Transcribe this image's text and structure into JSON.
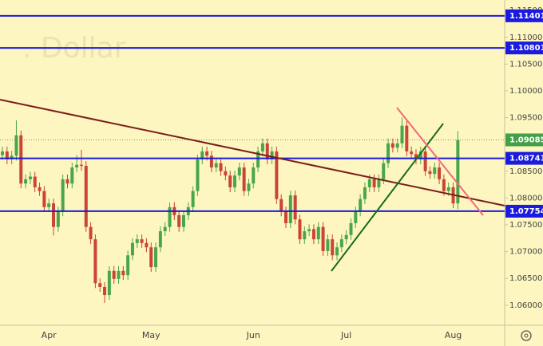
{
  "chart_data": {
    "type": "candlestick",
    "watermark": ". Dollar",
    "categories": [
      null,
      null,
      null,
      null,
      null,
      null,
      null,
      null,
      null,
      null,
      "Apr",
      null,
      null,
      null,
      null,
      null,
      null,
      null,
      null,
      null,
      null,
      null,
      null,
      null,
      null,
      null,
      null,
      null,
      null,
      null,
      null,
      null,
      "May",
      null,
      null,
      null,
      null,
      null,
      null,
      null,
      null,
      null,
      null,
      null,
      null,
      null,
      null,
      null,
      null,
      null,
      null,
      null,
      null,
      null,
      "Jun",
      null,
      null,
      null,
      null,
      null,
      null,
      null,
      null,
      null,
      null,
      null,
      null,
      null,
      null,
      null,
      null,
      null,
      null,
      null,
      "Jul",
      null,
      null,
      null,
      null,
      null,
      null,
      null,
      null,
      null,
      null,
      null,
      null,
      null,
      null,
      null,
      null,
      null,
      null,
      null,
      null,
      null,
      null,
      "Aug",
      null
    ],
    "open": [
      1.088,
      1.0887,
      1.0872,
      1.0879,
      1.0917,
      1.0827,
      1.0835,
      1.084,
      1.082,
      1.0813,
      1.0783,
      1.079,
      1.0746,
      1.0775,
      1.0835,
      1.0827,
      1.0857,
      1.0862,
      1.086,
      1.0746,
      1.0723,
      1.0641,
      1.0634,
      1.0619,
      1.0664,
      1.0649,
      1.0664,
      1.0656,
      1.0693,
      1.0716,
      1.0723,
      1.0716,
      1.0708,
      1.0671,
      1.0708,
      1.0738,
      1.0746,
      1.0783,
      1.0768,
      1.0746,
      1.0768,
      1.0783,
      1.0813,
      1.0872,
      1.0887,
      1.0879,
      1.0857,
      1.0865,
      1.085,
      1.0842,
      1.082,
      1.0842,
      1.0857,
      1.0813,
      1.0827,
      1.0857,
      1.0887,
      1.0902,
      1.0872,
      1.0887,
      1.0798,
      1.0775,
      1.0753,
      1.0805,
      1.076,
      1.0723,
      1.0738,
      1.0742,
      1.0723,
      1.0746,
      1.0701,
      1.0723,
      1.0693,
      1.0708,
      1.0723,
      1.0731,
      1.0753,
      1.0775,
      1.0798,
      1.082,
      1.0835,
      1.082,
      1.0835,
      1.0865,
      1.0902,
      1.0894,
      1.0902,
      1.0935,
      1.0887,
      1.0882,
      1.0872,
      1.0887,
      1.085,
      1.0845,
      1.0857,
      1.0835,
      1.0813,
      1.082,
      1.079
    ],
    "high": [
      1.0896,
      1.0896,
      1.0888,
      1.0945,
      1.0926,
      1.0844,
      1.0849,
      1.0849,
      1.0829,
      1.0822,
      1.0799,
      1.0799,
      1.0784,
      1.0844,
      1.0844,
      1.0866,
      1.088,
      1.089,
      1.0869,
      1.0755,
      1.0732,
      1.065,
      1.0643,
      1.0673,
      1.0673,
      1.0673,
      1.0673,
      1.0702,
      1.0725,
      1.0732,
      1.0732,
      1.0725,
      1.0717,
      1.0717,
      1.0747,
      1.0755,
      1.0792,
      1.0792,
      1.0777,
      1.0777,
      1.0792,
      1.0822,
      1.0881,
      1.0896,
      1.0896,
      1.0888,
      1.0874,
      1.0874,
      1.0859,
      1.0851,
      1.0851,
      1.0866,
      1.0866,
      1.0836,
      1.0866,
      1.0896,
      1.0911,
      1.0911,
      1.0896,
      1.0896,
      1.0807,
      1.0784,
      1.0814,
      1.0814,
      1.0769,
      1.0747,
      1.0751,
      1.0751,
      1.0755,
      1.0755,
      1.0732,
      1.0732,
      1.0717,
      1.0732,
      1.074,
      1.0762,
      1.0784,
      1.0807,
      1.0829,
      1.0844,
      1.0844,
      1.0844,
      1.0874,
      1.0911,
      1.0911,
      1.0911,
      1.095,
      1.0944,
      1.0896,
      1.0891,
      1.0896,
      1.0896,
      1.0859,
      1.0866,
      1.0866,
      1.0844,
      1.0829,
      1.0829,
      1.0925
    ],
    "low": [
      1.0871,
      1.0863,
      1.0863,
      1.087,
      1.0818,
      1.0818,
      1.0826,
      1.0811,
      1.0804,
      1.0774,
      1.0774,
      1.073,
      1.0737,
      1.0766,
      1.0818,
      1.0818,
      1.0848,
      1.0851,
      1.0737,
      1.0714,
      1.0632,
      1.0625,
      1.0604,
      1.061,
      1.064,
      1.064,
      1.0647,
      1.0647,
      1.0684,
      1.0707,
      1.0707,
      1.0699,
      1.0662,
      1.0662,
      1.0699,
      1.0729,
      1.0737,
      1.0759,
      1.0737,
      1.0737,
      1.0759,
      1.0774,
      1.0804,
      1.0863,
      1.087,
      1.0848,
      1.0848,
      1.0841,
      1.0833,
      1.0811,
      1.0811,
      1.0833,
      1.0804,
      1.0804,
      1.0818,
      1.0848,
      1.0878,
      1.0863,
      1.0863,
      1.0789,
      1.0766,
      1.0744,
      1.0744,
      1.0751,
      1.0714,
      1.0714,
      1.0729,
      1.0714,
      1.0714,
      1.0692,
      1.0692,
      1.0684,
      1.0684,
      1.0699,
      1.0714,
      1.0722,
      1.0744,
      1.0766,
      1.0789,
      1.0811,
      1.0811,
      1.0811,
      1.0826,
      1.0856,
      1.0885,
      1.0885,
      1.0893,
      1.0878,
      1.0873,
      1.0863,
      1.0863,
      1.0841,
      1.0836,
      1.0836,
      1.0826,
      1.0804,
      1.0804,
      1.0781,
      1.0779
    ],
    "close": [
      1.0887,
      1.0872,
      1.0879,
      1.0917,
      1.0827,
      1.0835,
      1.084,
      1.082,
      1.0813,
      1.0783,
      1.079,
      1.0746,
      1.0775,
      1.0835,
      1.0827,
      1.0857,
      1.0862,
      1.086,
      1.0746,
      1.0723,
      1.0641,
      1.0634,
      1.0619,
      1.0664,
      1.0649,
      1.0664,
      1.0656,
      1.0693,
      1.0716,
      1.0723,
      1.0716,
      1.0708,
      1.0671,
      1.0708,
      1.0738,
      1.0746,
      1.0783,
      1.0768,
      1.0746,
      1.0768,
      1.0783,
      1.0813,
      1.0872,
      1.0887,
      1.0879,
      1.0857,
      1.0865,
      1.085,
      1.0842,
      1.082,
      1.0842,
      1.0857,
      1.0813,
      1.0827,
      1.0857,
      1.0887,
      1.0902,
      1.0872,
      1.0887,
      1.0798,
      1.0775,
      1.0753,
      1.0805,
      1.076,
      1.0723,
      1.0738,
      1.0742,
      1.0723,
      1.0746,
      1.0701,
      1.0723,
      1.0693,
      1.0708,
      1.0723,
      1.0731,
      1.0753,
      1.0775,
      1.0798,
      1.082,
      1.0835,
      1.082,
      1.0835,
      1.0865,
      1.0902,
      1.0894,
      1.0902,
      1.0935,
      1.0887,
      1.0882,
      1.0872,
      1.0887,
      1.085,
      1.0845,
      1.0857,
      1.0835,
      1.0813,
      1.082,
      1.079,
      1.09085
    ],
    "up_color": "#4aa64a",
    "down_color": "#cc4433",
    "levels": [
      1.11401,
      1.10801,
      1.08741,
      1.07754
    ],
    "level_color": "#1a1ae0",
    "last_price": 1.09085,
    "last_price_color": "#43a047",
    "ylim": [
      1.05625,
      1.11696
    ],
    "yticks": [
      {
        "value": 1.115,
        "label": "1.11500"
      },
      {
        "value": 1.11,
        "label": "1.11000"
      },
      {
        "value": 1.105,
        "label": "1.10500"
      },
      {
        "value": 1.1,
        "label": "1.10000"
      },
      {
        "value": 1.095,
        "label": "1.09500"
      },
      {
        "value": 1.085,
        "label": "1.08500"
      },
      {
        "value": 1.08,
        "label": "1.08000"
      },
      {
        "value": 1.075,
        "label": "1.07500"
      },
      {
        "value": 1.07,
        "label": "1.07000"
      },
      {
        "value": 1.065,
        "label": "1.06500"
      },
      {
        "value": 1.06,
        "label": "1.06000"
      }
    ],
    "grid": false
  }
}
